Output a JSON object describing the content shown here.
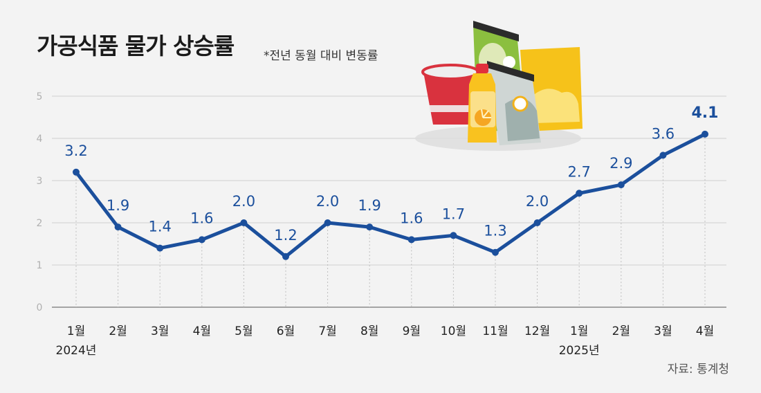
{
  "title": "가공식품 물가 상승률",
  "subtitle": "*전년 동월 대비 변동률",
  "source": "자료: 통계청",
  "colors": {
    "line": "#1b4f9c",
    "background": "#f3f3f3",
    "grid": "#cfcfcf"
  },
  "illustration": "processed-food-products-icon",
  "chart_data": {
    "type": "line",
    "title": "가공식품 물가 상승률",
    "subtitle": "*전년 동월 대비 변동률",
    "categories": [
      "1월",
      "2월",
      "3월",
      "4월",
      "5월",
      "6월",
      "7월",
      "8월",
      "9월",
      "10월",
      "11월",
      "12월",
      "1월",
      "2월",
      "3월",
      "4월"
    ],
    "year_labels": [
      {
        "index": 0,
        "label": "2024년"
      },
      {
        "index": 12,
        "label": "2025년"
      }
    ],
    "values": [
      3.2,
      1.9,
      1.4,
      1.6,
      2.0,
      1.2,
      2.0,
      1.9,
      1.6,
      1.7,
      1.3,
      2.0,
      2.7,
      2.9,
      3.6,
      4.1
    ],
    "value_labels": [
      "3.2",
      "1.9",
      "1.4",
      "1.6",
      "2.0",
      "1.2",
      "2.0",
      "1.9",
      "1.6",
      "1.7",
      "1.3",
      "2.0",
      "2.7",
      "2.9",
      "3.6",
      "4.1"
    ],
    "y_ticks": [
      "0",
      "1",
      "2",
      "3",
      "4",
      "5"
    ],
    "ylim": [
      0,
      5
    ],
    "xlabel": "",
    "ylabel": "",
    "grid": true,
    "legend": "none"
  }
}
